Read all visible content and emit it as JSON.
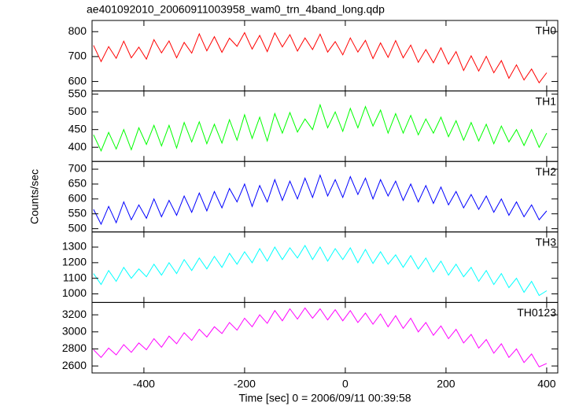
{
  "chart_data": {
    "type": "line",
    "title": "ae401092010_20060911003958_wam0_trn_4band_long.qdp",
    "xlabel": "Time [sec] 0 = 2006/09/11 00:39:58",
    "ylabel": "Counts/sec",
    "xlim": [
      -503,
      422
    ],
    "xticks": [
      -400,
      -200,
      0,
      200,
      400
    ],
    "x": [
      -500,
      -485,
      -470,
      -455,
      -440,
      -425,
      -410,
      -395,
      -380,
      -365,
      -350,
      -335,
      -320,
      -305,
      -290,
      -275,
      -260,
      -245,
      -230,
      -215,
      -200,
      -185,
      -170,
      -155,
      -140,
      -125,
      -110,
      -95,
      -80,
      -65,
      -50,
      -35,
      -20,
      -5,
      10,
      25,
      40,
      55,
      70,
      85,
      100,
      115,
      130,
      145,
      160,
      175,
      190,
      205,
      220,
      235,
      250,
      265,
      280,
      295,
      310,
      325,
      340,
      355,
      370,
      385,
      400
    ],
    "series": [
      {
        "name": "TH0",
        "color": "#ff0000",
        "ylim": [
          562,
          845
        ],
        "yticks": [
          600,
          700,
          800
        ],
        "values": [
          745,
          680,
          740,
          693,
          762,
          695,
          738,
          690,
          768,
          715,
          763,
          695,
          757,
          714,
          791,
          723,
          780,
          717,
          774,
          741,
          796,
          730,
          785,
          720,
          795,
          739,
          788,
          722,
          775,
          728,
          790,
          718,
          760,
          707,
          775,
          718,
          765,
          692,
          755,
          697,
          764,
          695,
          746,
          677,
          728,
          675,
          735,
          670,
          720,
          644,
          703,
          642,
          701,
          635,
          684,
          613,
          667,
          606,
          650,
          595,
          635
        ]
      },
      {
        "name": "TH1",
        "color": "#00ff00",
        "ylim": [
          360,
          559
        ],
        "yticks": [
          400,
          450,
          500,
          550
        ],
        "values": [
          435,
          390,
          442,
          395,
          450,
          393,
          455,
          408,
          462,
          404,
          462,
          398,
          470,
          415,
          472,
          410,
          465,
          412,
          478,
          420,
          492,
          425,
          485,
          418,
          495,
          440,
          498,
          443,
          480,
          450,
          520,
          455,
          500,
          445,
          510,
          455,
          515,
          460,
          505,
          440,
          495,
          440,
          490,
          435,
          480,
          440,
          485,
          430,
          475,
          420,
          470,
          418,
          465,
          410,
          460,
          415,
          450,
          405,
          450,
          400,
          440
        ]
      },
      {
        "name": "TH2",
        "color": "#0000ff",
        "ylim": [
          489,
          726
        ],
        "yticks": [
          500,
          550,
          600,
          650,
          700
        ],
        "values": [
          565,
          515,
          575,
          520,
          590,
          530,
          580,
          535,
          600,
          540,
          595,
          545,
          610,
          555,
          620,
          560,
          625,
          570,
          635,
          590,
          650,
          575,
          645,
          590,
          665,
          595,
          660,
          600,
          670,
          605,
          680,
          610,
          665,
          605,
          675,
          615,
          670,
          600,
          665,
          610,
          660,
          595,
          650,
          590,
          645,
          585,
          640,
          580,
          625,
          570,
          615,
          565,
          610,
          555,
          600,
          545,
          590,
          540,
          580,
          530,
          560
        ]
      },
      {
        "name": "TH3",
        "color": "#00ffff",
        "ylim": [
          945,
          1397
        ],
        "yticks": [
          1000,
          1100,
          1200,
          1300
        ],
        "values": [
          1130,
          1060,
          1150,
          1080,
          1170,
          1100,
          1160,
          1110,
          1190,
          1120,
          1200,
          1130,
          1220,
          1150,
          1230,
          1160,
          1240,
          1170,
          1260,
          1190,
          1270,
          1200,
          1290,
          1210,
          1300,
          1220,
          1295,
          1230,
          1310,
          1220,
          1300,
          1210,
          1290,
          1220,
          1295,
          1200,
          1285,
          1195,
          1270,
          1190,
          1250,
          1170,
          1245,
          1160,
          1230,
          1140,
          1210,
          1120,
          1190,
          1110,
          1170,
          1080,
          1150,
          1060,
          1130,
          1040,
          1100,
          1010,
          1080,
          990,
          1020
        ]
      },
      {
        "name": "TH0123",
        "color": "#ff00ff",
        "ylim": [
          2518,
          3345
        ],
        "yticks": [
          2600,
          2800,
          3000,
          3200
        ],
        "values": [
          2790,
          2700,
          2810,
          2730,
          2850,
          2760,
          2870,
          2790,
          2920,
          2820,
          2950,
          2860,
          2990,
          2900,
          3030,
          2940,
          3060,
          2980,
          3110,
          3020,
          3160,
          3060,
          3200,
          3100,
          3250,
          3130,
          3270,
          3150,
          3280,
          3160,
          3270,
          3140,
          3260,
          3130,
          3250,
          3110,
          3220,
          3090,
          3210,
          3060,
          3190,
          3040,
          3160,
          3000,
          3110,
          2960,
          3070,
          2920,
          3030,
          2870,
          2970,
          2810,
          2910,
          2750,
          2860,
          2700,
          2800,
          2640,
          2740,
          2590,
          2630
        ]
      }
    ]
  }
}
